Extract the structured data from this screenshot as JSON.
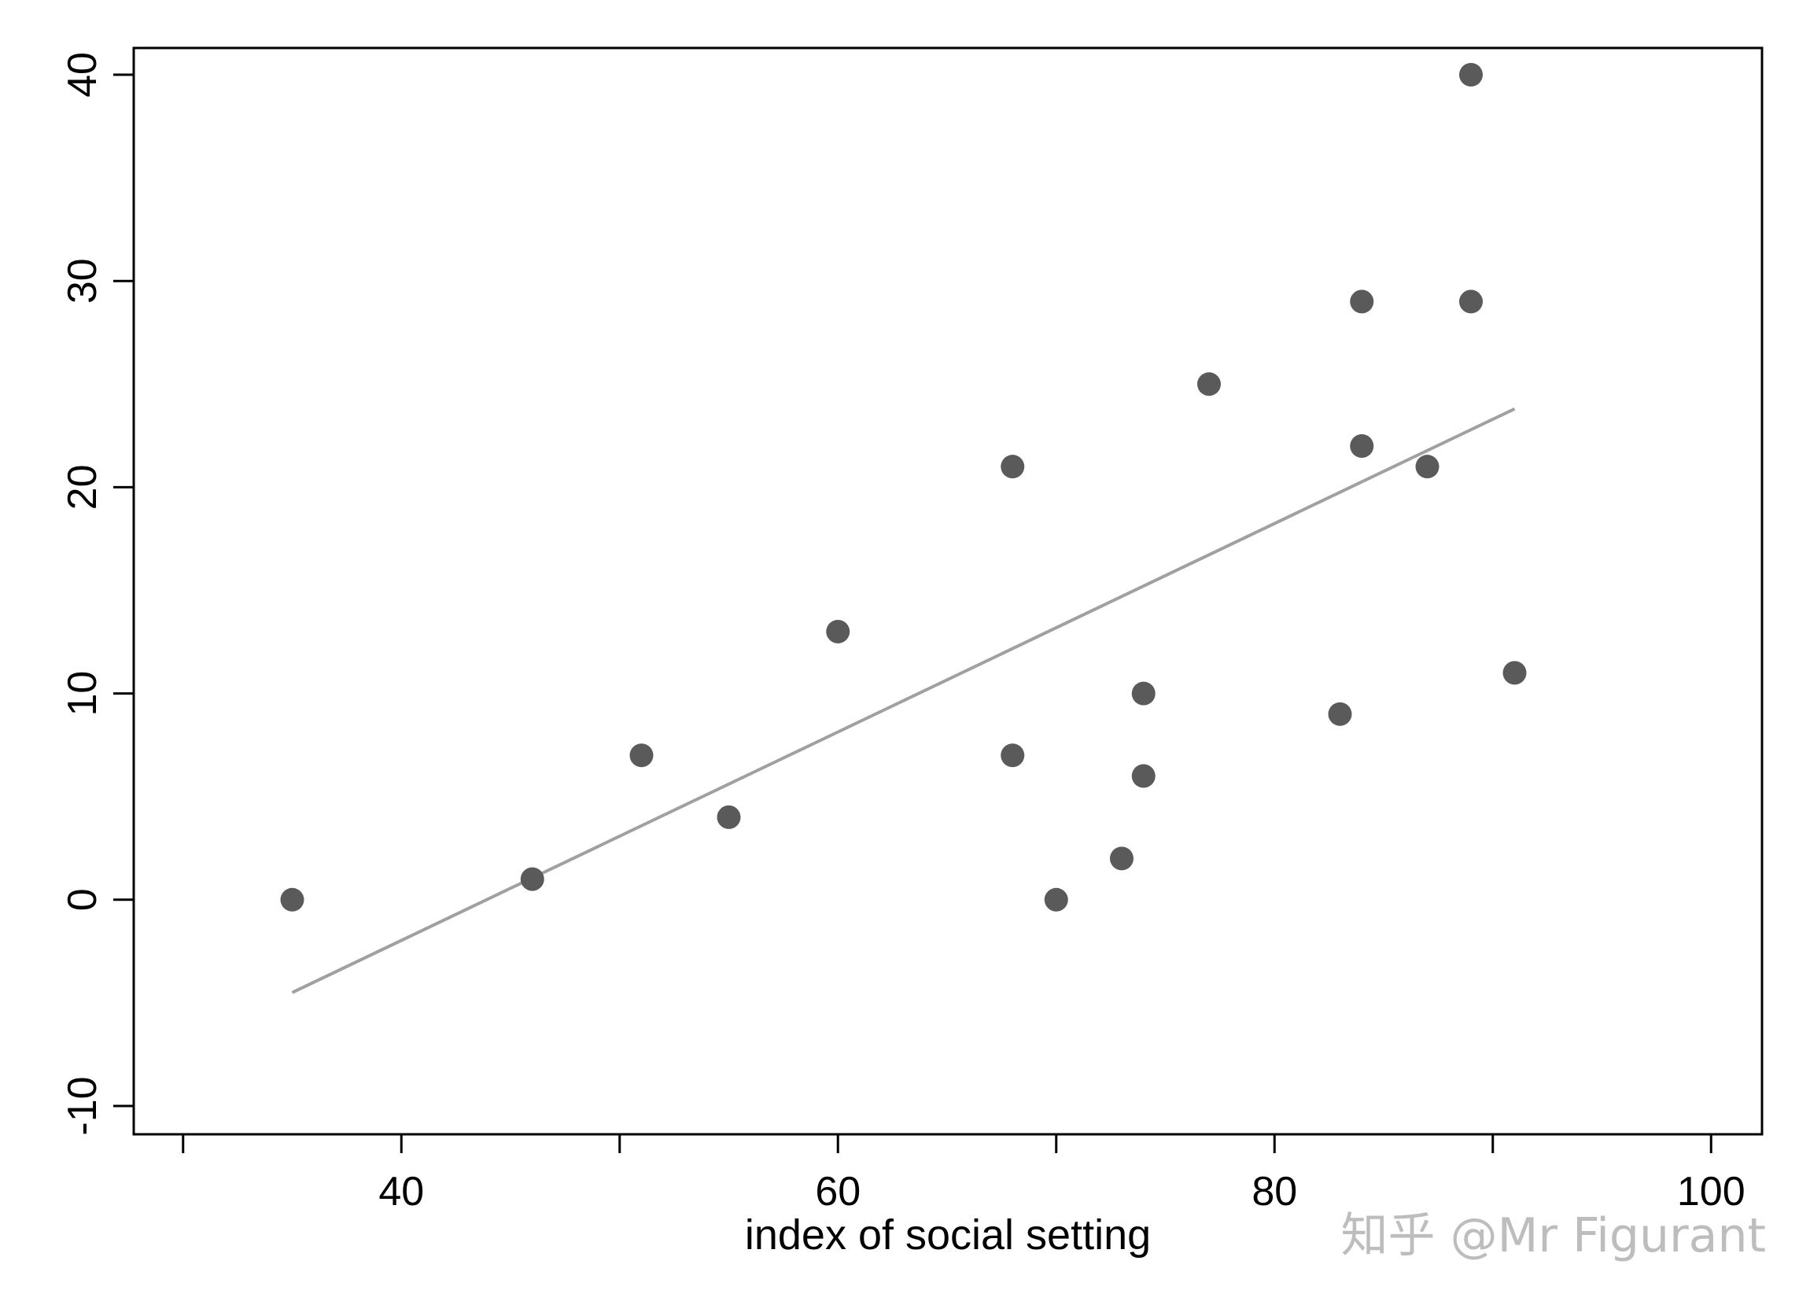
{
  "chart_data": {
    "type": "scatter",
    "title": "",
    "xlabel": "index of social setting",
    "ylabel": "",
    "xlim": [
      29,
      101
    ],
    "ylim": [
      -11,
      41.3
    ],
    "x_ticks": [
      40,
      60,
      80,
      100
    ],
    "x_minor_ticks": [
      30,
      50,
      70,
      90
    ],
    "y_ticks": [
      -10,
      0,
      10,
      20,
      30,
      40
    ],
    "x_tick_labels": [
      "40",
      "60",
      "80",
      "100"
    ],
    "y_tick_labels": [
      "-10",
      "0",
      "10",
      "20",
      "30",
      "40"
    ],
    "grid": false,
    "legend": "none",
    "series": [
      {
        "type": "scatter",
        "color": "#5a5a5a",
        "points": [
          {
            "x": 35,
            "y": 0
          },
          {
            "x": 46,
            "y": 1
          },
          {
            "x": 51,
            "y": 7
          },
          {
            "x": 55,
            "y": 4
          },
          {
            "x": 60,
            "y": 13
          },
          {
            "x": 68,
            "y": 21
          },
          {
            "x": 68,
            "y": 7
          },
          {
            "x": 70,
            "y": 0
          },
          {
            "x": 73,
            "y": 2
          },
          {
            "x": 74,
            "y": 10
          },
          {
            "x": 74,
            "y": 6
          },
          {
            "x": 77,
            "y": 25
          },
          {
            "x": 83,
            "y": 9
          },
          {
            "x": 84,
            "y": 29
          },
          {
            "x": 84,
            "y": 22
          },
          {
            "x": 87,
            "y": 21
          },
          {
            "x": 89,
            "y": 40
          },
          {
            "x": 89,
            "y": 29
          },
          {
            "x": 91,
            "y": 11
          }
        ]
      },
      {
        "type": "line",
        "color": "#a0a0a0",
        "fit": "linear",
        "points": [
          {
            "x": 35,
            "y": -4.5
          },
          {
            "x": 91,
            "y": 23.8
          }
        ]
      }
    ]
  },
  "watermark": {
    "text": "知乎 @Mr Figurant"
  },
  "colors": {
    "axis": "#000000",
    "points": "#5a5a5a",
    "fit_line": "#a0a0a0",
    "watermark": "#bdbdbd"
  }
}
